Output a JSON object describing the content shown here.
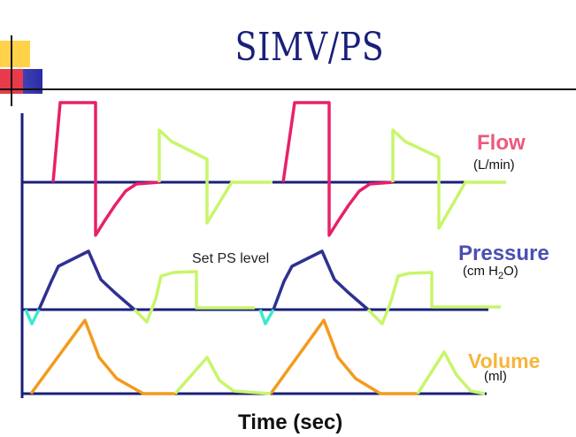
{
  "title": "SIMV/PS",
  "labels": {
    "flow": "Flow",
    "flow_unit": "(L/min)",
    "pressure": "Pressure",
    "pressure_unit": "(cm H2O)",
    "volume": "Volume",
    "volume_unit": "(ml)",
    "ps_annotation": "Set PS level",
    "time_axis": "Time (sec)"
  },
  "colors": {
    "title": "#1a1f7a",
    "axis": "#1a1f7a",
    "mandatory_flow": "#e8206a",
    "spontaneous": "#c8f56a",
    "mandatory_pressure": "#2e3192",
    "trigger": "#3ee8d0",
    "volume_mandatory": "#f39a1c"
  }
}
